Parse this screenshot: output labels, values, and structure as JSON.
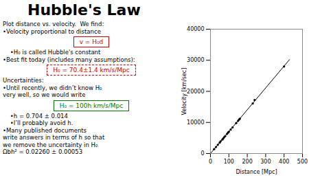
{
  "chart_data": {
    "type": "scatter",
    "title": "Hubble's Law",
    "x_label": "Distance [Mpc]",
    "y_label": "Velocity [km/sec]",
    "series": [
      {
        "type": "scatter",
        "color": "black",
        "x": [
          20,
          30,
          40,
          50,
          55,
          65,
          70,
          75,
          80,
          90,
          95,
          100,
          110,
          120,
          140,
          150,
          155,
          160,
          230,
          240,
          400
        ],
        "values": [
          1400,
          2100,
          2800,
          3500,
          3900,
          4500,
          4900,
          5300,
          5600,
          6300,
          6700,
          7000,
          7700,
          8400,
          9800,
          10500,
          10900,
          11200,
          16100,
          17200,
          28000
        ]
      },
      {
        "type": "line",
        "color": "black",
        "x": [
          0,
          430
        ],
        "values": [
          0,
          30250
        ]
      }
    ],
    "xlim": [
      0,
      500
    ],
    "ylim": [
      0,
      40000
    ],
    "xticks": [
      0,
      100,
      200,
      300,
      400,
      500
    ],
    "yticks": [
      0,
      10000,
      20000,
      30000,
      40000
    ],
    "annotations": [
      {
        "text": "Plot distance vs. velocity.  We find:"
      },
      {
        "text": "•Velocity proportional to distance"
      },
      {
        "text": "v = H₀d",
        "color": "#cc0000",
        "line_style": "solid"
      },
      {
        "text": "    •H₀ is called Hubble's constant"
      },
      {
        "text": "•Best fit today (includes many assumptions):"
      },
      {
        "text": "H₀ = 70.4±1.4 km/s/Mpc",
        "color": "#cc0000",
        "line_style": "dashed"
      },
      {
        "text": "Uncertainties:"
      },
      {
        "text": "•Until recently, we didn’t know H₀"
      },
      {
        "text": "very well, so we would write"
      },
      {
        "text": "H₀ = 100h km/s/Mpc",
        "color": "#007700",
        "line_style": "solid"
      },
      {
        "text": "    •h = 0.704 ± 0.014"
      },
      {
        "text": "    •I’ll probably avoid h."
      },
      {
        "text": "•Many published documents"
      },
      {
        "text": "write answers in terms of h so that"
      },
      {
        "text": "we remove the uncertainty in H₀"
      },
      {
        "text": "Ωbh² = 0.02260 ± 0.00053"
      }
    ]
  }
}
